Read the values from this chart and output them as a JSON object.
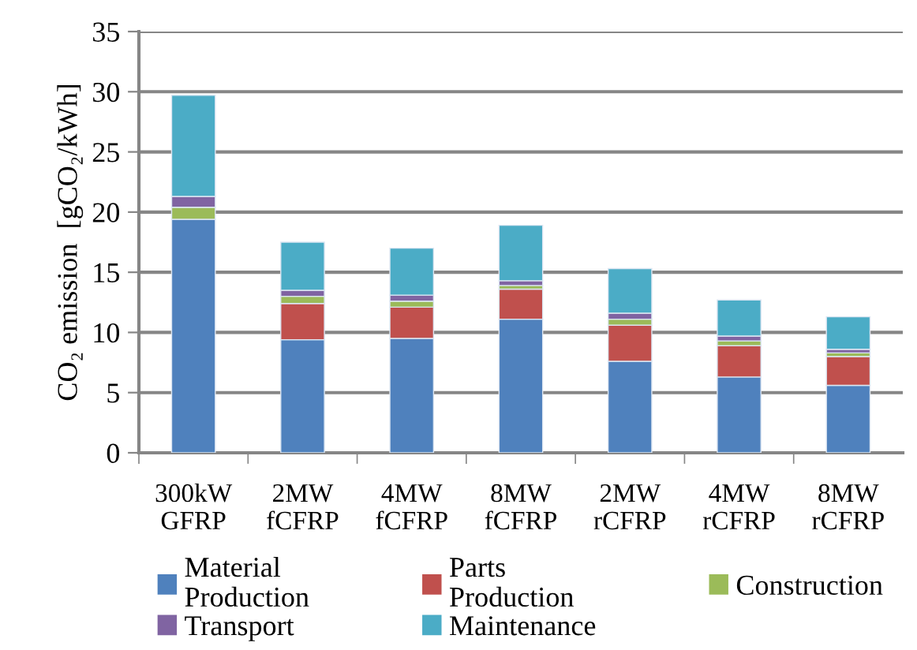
{
  "chart_data": {
    "type": "bar",
    "stacked": true,
    "ylabel": "CO₂ emission  [gCO₂/kWh]",
    "categories": [
      "300kW\nGFRP",
      "2MW\nfCFRP",
      "4MW\nfCFRP",
      "8MW\nfCFRP",
      "2MW\nrCFRP",
      "4MW\nrCFRP",
      "8MW\nrCFRP"
    ],
    "series": [
      {
        "name": "Material\nProduction",
        "color": "#4f81bd",
        "values": [
          19.4,
          9.4,
          9.5,
          11.1,
          7.6,
          6.3,
          5.6
        ]
      },
      {
        "name": "Parts\nProduction",
        "color": "#c0504d",
        "values": [
          null,
          3.0,
          2.6,
          2.5,
          3.0,
          2.6,
          2.4
        ]
      },
      {
        "name": "Construction",
        "color": "#9bbb59",
        "values": [
          1.0,
          0.6,
          0.5,
          0.3,
          0.5,
          0.4,
          0.3
        ]
      },
      {
        "name": "Transport",
        "color": "#8064a2",
        "values": [
          0.9,
          0.5,
          0.5,
          0.4,
          0.5,
          0.4,
          0.3
        ]
      },
      {
        "name": "Maintenance",
        "color": "#4bacc6",
        "values": [
          8.4,
          4.0,
          3.9,
          4.6,
          3.7,
          3.0,
          2.7
        ]
      }
    ],
    "ylim": [
      0,
      35
    ],
    "yticks": [
      0,
      5,
      10,
      15,
      20,
      25,
      30,
      35
    ],
    "grid": "y",
    "legend": "bottom"
  }
}
